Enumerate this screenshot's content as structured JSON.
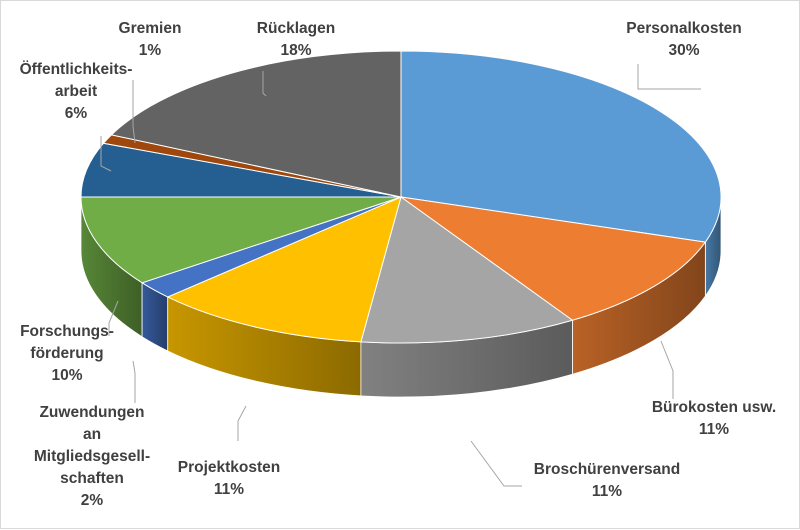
{
  "chart_data": {
    "type": "pie",
    "variant": "3d",
    "title": "",
    "categories": [
      "Personalkosten",
      "Bürokosten usw.",
      "Broschürenversand",
      "Projektkosten",
      "Zuwendungen an Mitgliedsgesellschaften",
      "Forschungsförderung",
      "Öffentlichkeitsarbeit",
      "Gremien",
      "Rücklagen"
    ],
    "values": [
      30,
      11,
      11,
      11,
      2,
      10,
      6,
      1,
      18
    ],
    "colors": [
      "#5b9bd5",
      "#ed7d31",
      "#a5a5a5",
      "#ffc000",
      "#4472c4",
      "#70ad47",
      "#255e91",
      "#9e480e",
      "#636363"
    ],
    "labels": [
      {
        "lines": [
          "Personalkosten"
        ],
        "value": "30%"
      },
      {
        "lines": [
          "Bürokosten usw."
        ],
        "value": "11%"
      },
      {
        "lines": [
          "Broschürenversand"
        ],
        "value": "11%"
      },
      {
        "lines": [
          "Projektkosten"
        ],
        "value": "11%"
      },
      {
        "lines": [
          "Zuwendungen",
          "an",
          "Mitgliedsgesell-",
          "schaften"
        ],
        "value": "2%"
      },
      {
        "lines": [
          "Forschungs-",
          "förderung"
        ],
        "value": "10%"
      },
      {
        "lines": [
          "Öffentlichkeits-",
          "arbeit"
        ],
        "value": "6%"
      },
      {
        "lines": [
          "Gremien"
        ],
        "value": "1%"
      },
      {
        "lines": [
          "Rücklagen"
        ],
        "value": "18%"
      }
    ],
    "legend": "none"
  }
}
